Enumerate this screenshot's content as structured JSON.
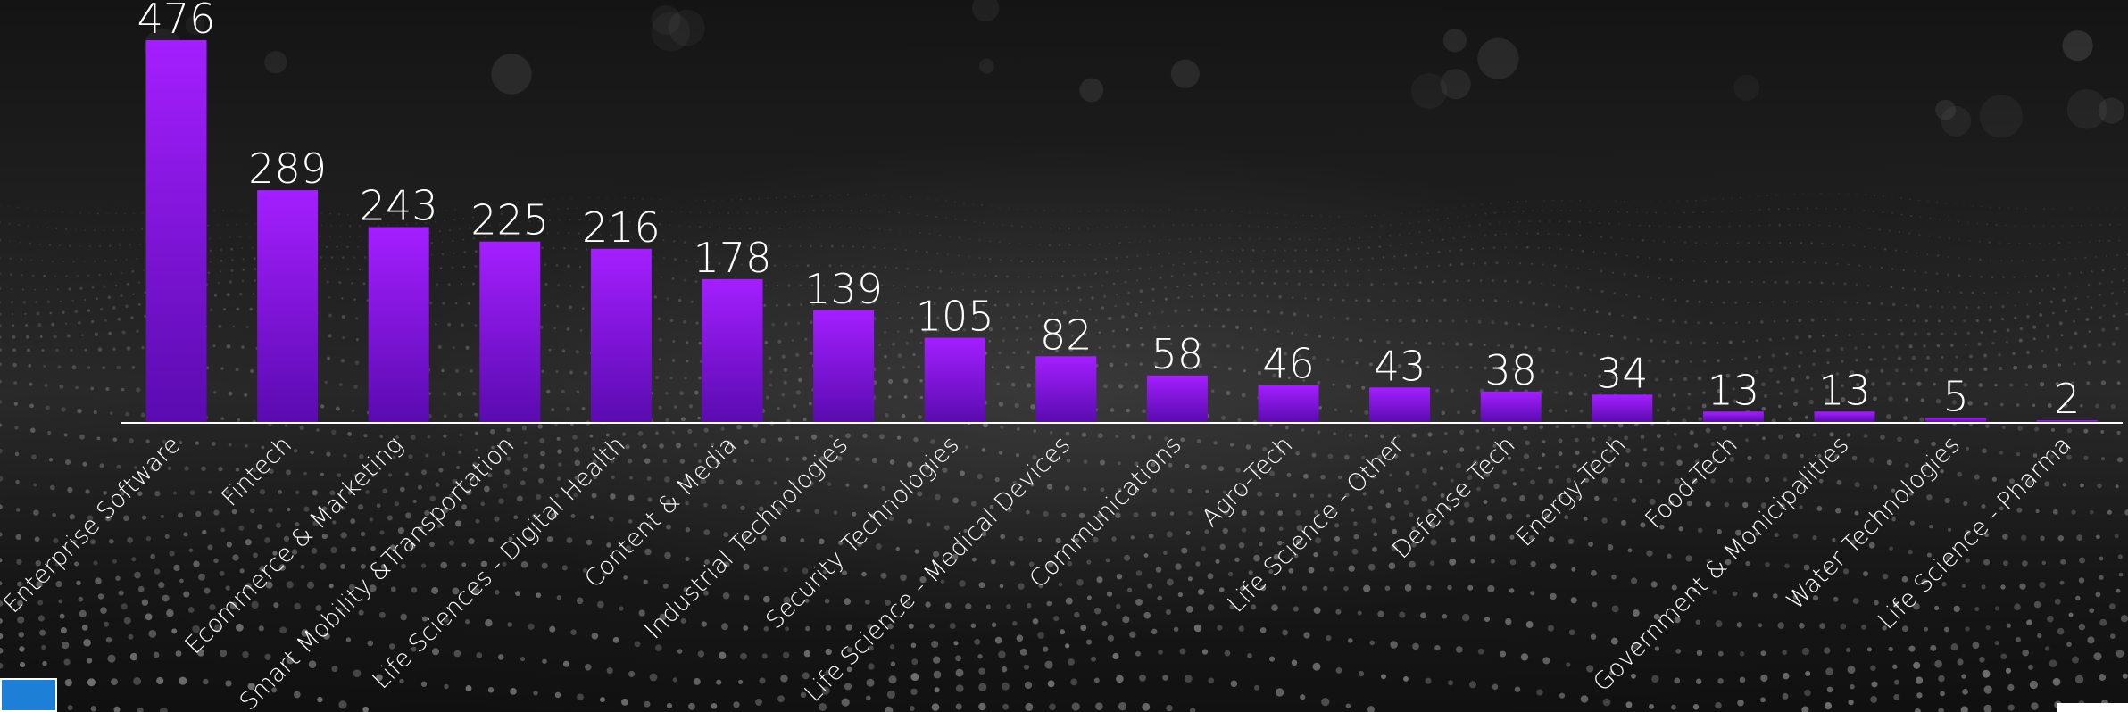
{
  "chart_data": {
    "type": "bar",
    "categories": [
      "Enterprise Software",
      "Fintech",
      "Ecommerce & Marketing",
      "Smart Mobility &Transportation",
      "Life Sciences - Digital Health",
      "Content & Media",
      "Industrial Technologies",
      "Security Technologies",
      "Life Science - Medical Devices",
      "Communications",
      "Agro-Tech",
      "Life Science - Other",
      "Defense Tech",
      "Energy-Tech",
      "Food-Tech",
      "Government & Monicipalities",
      "Water Technologies",
      "Life Science - Pharma"
    ],
    "values": [
      476,
      289,
      243,
      225,
      216,
      178,
      139,
      105,
      82,
      58,
      46,
      43,
      38,
      34,
      13,
      13,
      5,
      2
    ],
    "title": "",
    "xlabel": "",
    "ylabel": "",
    "ylim": [
      0,
      476
    ],
    "grid": false,
    "legend": "none",
    "colors": {
      "bar_top": "#a41fff",
      "bar_bottom": "#5a0bb0",
      "axis": "#ffffff",
      "text": "#ffffff"
    }
  },
  "icons": {
    "logo": "emblem-logo-icon"
  }
}
